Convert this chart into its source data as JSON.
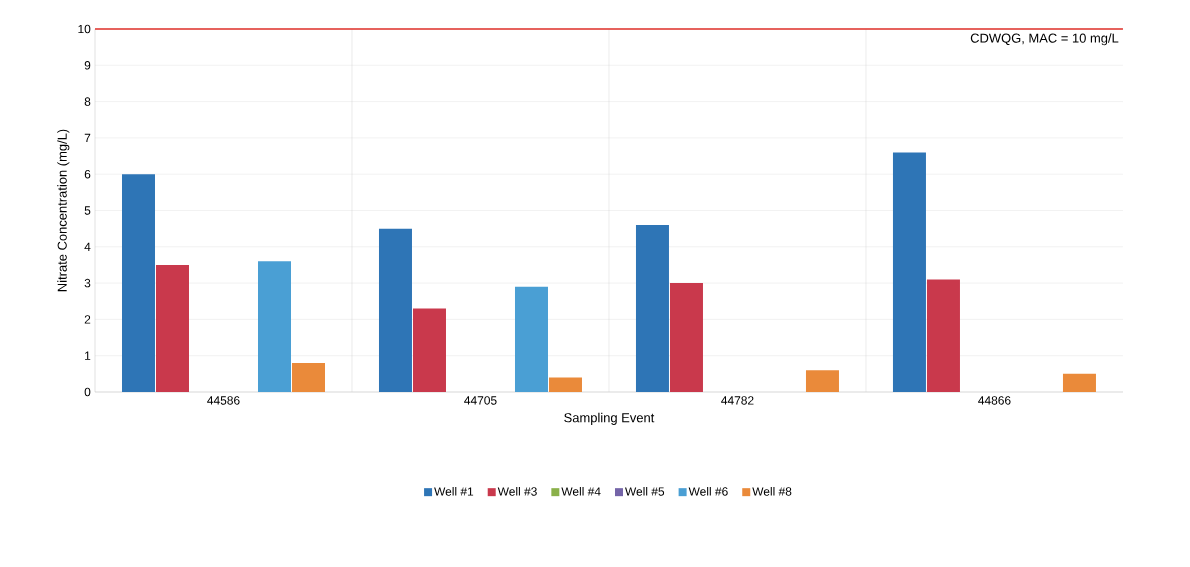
{
  "chart_data": {
    "type": "bar",
    "xlabel": "Sampling Event",
    "ylabel": "Nitrate Concentration (mg/L)",
    "categories": [
      "44586",
      "44705",
      "44782",
      "44866"
    ],
    "series": [
      {
        "name": "Well #1",
        "color": "#2e75b6",
        "values": [
          6.0,
          4.5,
          4.6,
          6.6
        ]
      },
      {
        "name": "Well #3",
        "color": "#c9394c",
        "values": [
          3.5,
          2.3,
          3.0,
          3.1
        ]
      },
      {
        "name": "Well #4",
        "color": "#8ab04a",
        "values": [
          0,
          0,
          0,
          0
        ]
      },
      {
        "name": "Well #5",
        "color": "#7464a8",
        "values": [
          0,
          0,
          0,
          0
        ]
      },
      {
        "name": "Well #6",
        "color": "#4a9fd4",
        "values": [
          3.6,
          2.9,
          0,
          0
        ]
      },
      {
        "name": "Well #8",
        "color": "#ea8a3a",
        "values": [
          0.8,
          0.4,
          0.6,
          0.5
        ]
      }
    ],
    "ylim": [
      0,
      10
    ],
    "yticks": [
      0,
      1,
      2,
      3,
      4,
      5,
      6,
      7,
      8,
      9,
      10
    ],
    "ref_lines": [
      {
        "axis": "y",
        "value": 10,
        "label": "CDWQG, MAC = 10 mg/L",
        "color": "#e0302a"
      }
    ],
    "grid": "y",
    "legend": "bottom"
  }
}
